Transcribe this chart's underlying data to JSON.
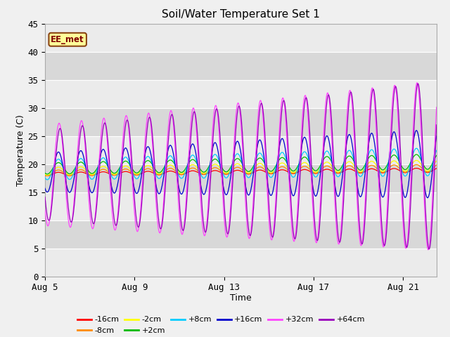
{
  "title": "Soil/Water Temperature Set 1",
  "xlabel": "Time",
  "ylabel": "Temperature (C)",
  "ylim": [
    0,
    45
  ],
  "xlim_days": [
    0,
    17.5
  ],
  "xtick_labels": [
    "Aug 5",
    "Aug 9",
    "Aug 13",
    "Aug 17",
    "Aug 21"
  ],
  "xtick_positions": [
    0,
    4,
    8,
    12,
    16
  ],
  "ytick_positions": [
    0,
    5,
    10,
    15,
    20,
    25,
    30,
    35,
    40,
    45
  ],
  "fig_bg_color": "#f0f0f0",
  "plot_bg_color": "#e8e8e8",
  "annotation_text": "EE_met",
  "annotation_bg": "#ffff99",
  "annotation_border": "#8B4513",
  "band_colors": [
    "#ebebeb",
    "#d8d8d8"
  ],
  "series": [
    {
      "label": "-16cm",
      "color": "#ff0000",
      "base": 18.2,
      "amp": 0.3,
      "amp_trend": 0.005,
      "phase": 0.35,
      "period": 1.0,
      "base_trend": 0.04
    },
    {
      "label": "-8cm",
      "color": "#ff8c00",
      "base": 18.4,
      "amp": 0.5,
      "amp_trend": 0.01,
      "phase": 0.35,
      "period": 1.0,
      "base_trend": 0.05
    },
    {
      "label": "-2cm",
      "color": "#ffff00",
      "base": 18.7,
      "amp": 0.7,
      "amp_trend": 0.015,
      "phase": 0.35,
      "period": 1.0,
      "base_trend": 0.06
    },
    {
      "label": "+2cm",
      "color": "#00bb00",
      "base": 19.2,
      "amp": 1.0,
      "amp_trend": 0.02,
      "phase": 0.35,
      "period": 1.0,
      "base_trend": 0.07
    },
    {
      "label": "+8cm",
      "color": "#00ccff",
      "base": 19.0,
      "amp": 1.8,
      "amp_trend": 0.04,
      "phase": 0.35,
      "period": 1.0,
      "base_trend": 0.08
    },
    {
      "label": "+16cm",
      "color": "#0000cc",
      "base": 18.5,
      "amp": 3.5,
      "amp_trend": 0.15,
      "phase": 0.35,
      "period": 1.0,
      "base_trend": 0.09
    },
    {
      "label": "+32cm",
      "color": "#ff44ff",
      "base": 18.0,
      "amp": 9.0,
      "amp_trend": 0.35,
      "phase": 0.38,
      "period": 1.0,
      "base_trend": 0.1
    },
    {
      "label": "+64cm",
      "color": "#9900bb",
      "base": 18.0,
      "amp": 8.0,
      "amp_trend": 0.4,
      "phase": 0.42,
      "period": 1.0,
      "base_trend": 0.1
    }
  ],
  "legend_ncol_row1": 6,
  "legend_labels_row1": [
    "-16cm",
    "-8cm",
    "-2cm",
    "+2cm",
    "+8cm",
    "+16cm"
  ],
  "legend_labels_row2": [
    "+32cm",
    "+64cm"
  ]
}
